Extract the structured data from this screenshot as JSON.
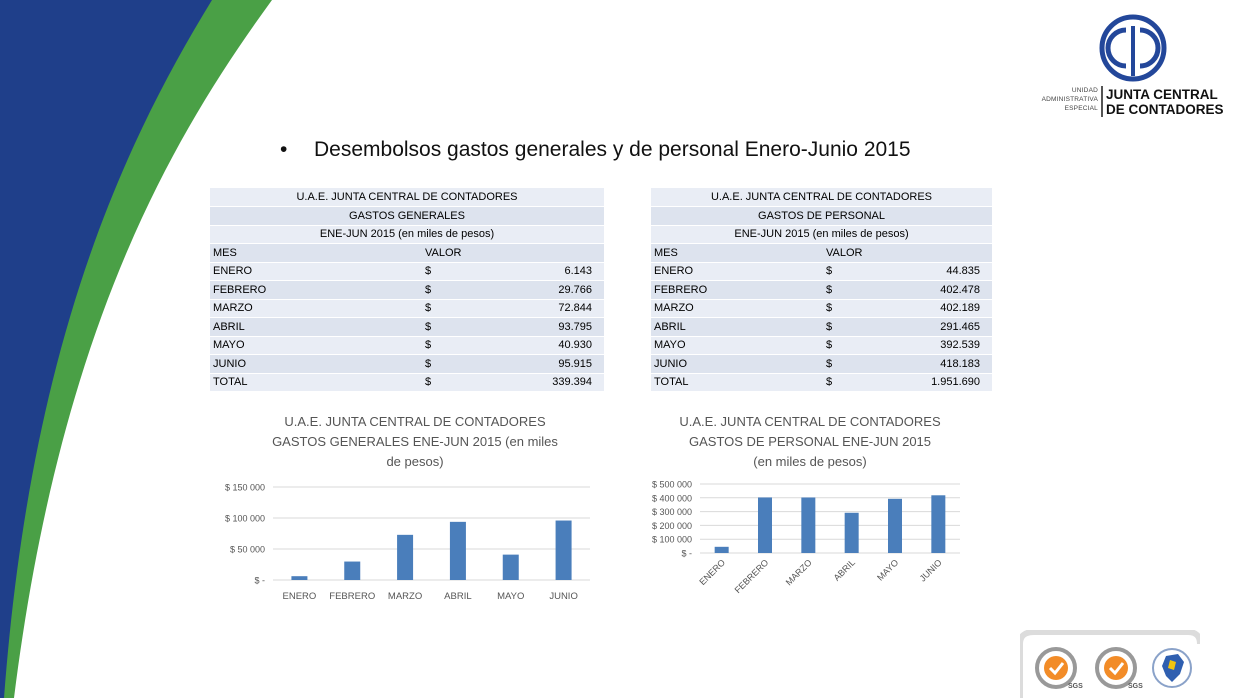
{
  "logo": {
    "small_lines": [
      "UNIDAD",
      "ADMINISTRATIVA",
      "ESPECIAL"
    ],
    "big_lines": [
      "JUNTA CENTRAL",
      "DE CONTADORES"
    ]
  },
  "heading": "Desembolsos gastos generales y de personal Enero-Junio 2015",
  "tables": {
    "generales": {
      "header_lines": [
        "U.A.E. JUNTA CENTRAL DE CONTADORES",
        "GASTOS GENERALES",
        "ENE-JUN 2015   (en miles de pesos)"
      ],
      "col_mes": "MES",
      "col_valor": "VALOR",
      "currency": "$",
      "rows": [
        {
          "mes": "ENERO",
          "valor": "6.143"
        },
        {
          "mes": "FEBRERO",
          "valor": "29.766"
        },
        {
          "mes": "MARZO",
          "valor": "72.844"
        },
        {
          "mes": "ABRIL",
          "valor": "93.795"
        },
        {
          "mes": "MAYO",
          "valor": "40.930"
        },
        {
          "mes": "JUNIO",
          "valor": "95.915"
        },
        {
          "mes": "TOTAL",
          "valor": "339.394"
        }
      ]
    },
    "personal": {
      "header_lines": [
        "U.A.E. JUNTA CENTRAL DE CONTADORES",
        "GASTOS DE PERSONAL",
        "ENE-JUN 2015   (en miles de pesos)"
      ],
      "col_mes": "MES",
      "col_valor": "VALOR",
      "currency": "$",
      "rows": [
        {
          "mes": "ENERO",
          "valor": "44.835"
        },
        {
          "mes": "FEBRERO",
          "valor": "402.478"
        },
        {
          "mes": "MARZO",
          "valor": "402.189"
        },
        {
          "mes": "ABRIL",
          "valor": "291.465"
        },
        {
          "mes": "MAYO",
          "valor": "392.539"
        },
        {
          "mes": "JUNIO",
          "valor": "418.183"
        },
        {
          "mes": "TOTAL",
          "valor": "1.951.690"
        }
      ]
    }
  },
  "colors": {
    "bar": "#4a7ebb",
    "grid": "#d9d9d9",
    "navy": "#1f3f8a",
    "green": "#4aa046",
    "logo_blue": "#23479a"
  },
  "chart_data": [
    {
      "type": "bar",
      "title_lines": [
        "U.A.E. JUNTA CENTRAL DE CONTADORES",
        "GASTOS GENERALES  ENE-JUN 2015  (en miles",
        "de pesos)"
      ],
      "categories": [
        "ENERO",
        "FEBRERO",
        "MARZO",
        "ABRIL",
        "MAYO",
        "JUNIO"
      ],
      "values": [
        6143,
        29766,
        72844,
        93795,
        40930,
        95915
      ],
      "ylim": [
        0,
        150000
      ],
      "yticks": [
        0,
        50000,
        100000,
        150000
      ],
      "ytick_labels": [
        "$ -",
        "$ 50 000",
        "$ 100 000",
        "$ 150 000"
      ],
      "grid": true,
      "x_label_rotation": 0
    },
    {
      "type": "bar",
      "title_lines": [
        "U.A.E. JUNTA CENTRAL DE CONTADORES",
        "GASTOS DE PERSONAL  ENE-JUN 2015",
        "(en miles de pesos)"
      ],
      "categories": [
        "ENERO",
        "FEBRERO",
        "MARZO",
        "ABRIL",
        "MAYO",
        "JUNIO"
      ],
      "values": [
        44835,
        402478,
        402189,
        291465,
        392539,
        418183
      ],
      "ylim": [
        0,
        500000
      ],
      "yticks": [
        0,
        100000,
        200000,
        300000,
        400000,
        500000
      ],
      "ytick_labels": [
        "$ -",
        "$ 100 000",
        "$ 200 000",
        "$ 300 000",
        "$ 400 000",
        "$ 500 000"
      ],
      "grid": true,
      "x_label_rotation": -45
    }
  ],
  "certifications": [
    {
      "icon": "sgs-certification-seal-icon",
      "label": "SGS"
    },
    {
      "icon": "sgs-certification-seal-icon",
      "label": "SGS"
    },
    {
      "icon": "colombia-map-seal-icon",
      "label": ""
    }
  ]
}
